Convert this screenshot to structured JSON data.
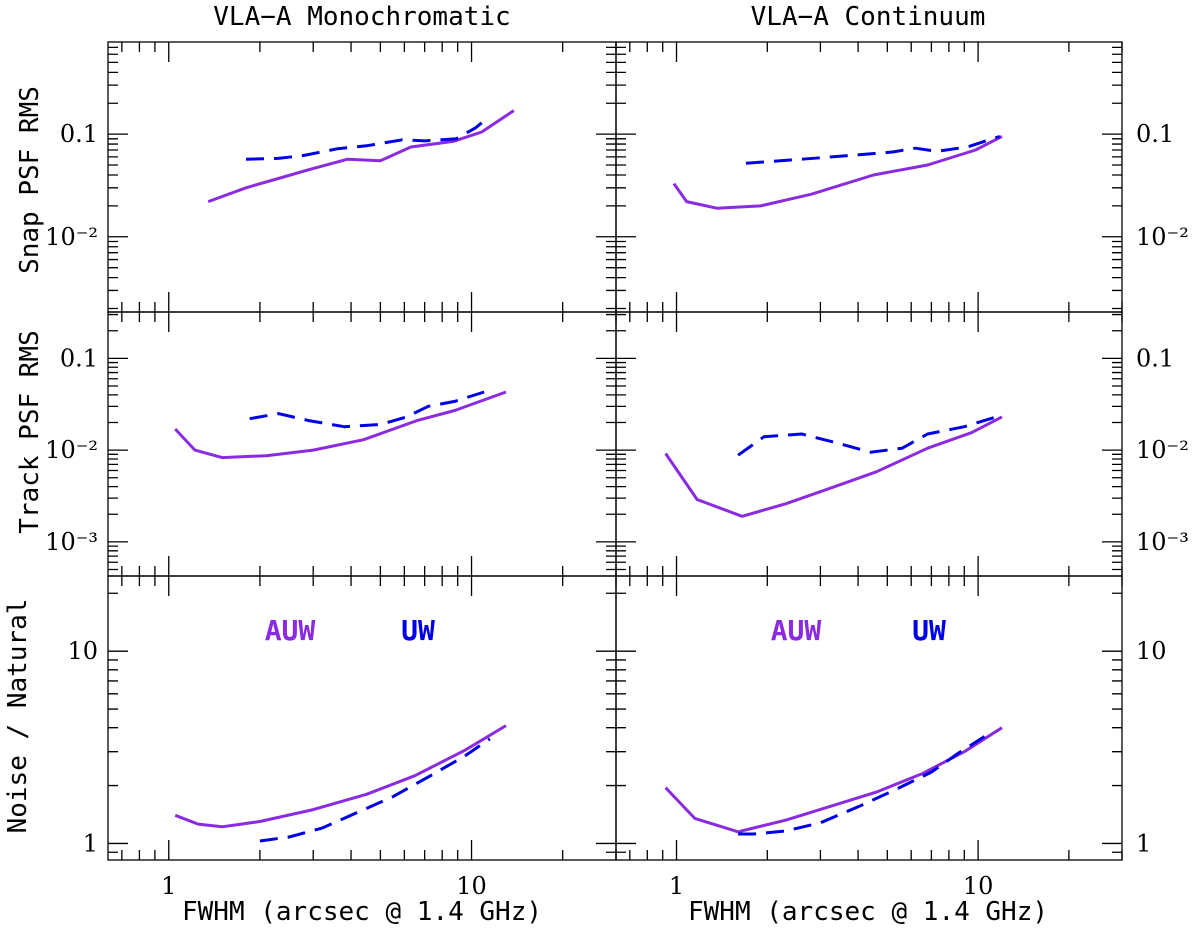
{
  "colors": {
    "auw": "#8a2be2",
    "uw": "#0000e6"
  },
  "columns": [
    {
      "title": "VLA−A Monochromatic",
      "xlabel": "FWHM (arcsec @ 1.4 GHz)"
    },
    {
      "title": "VLA−A Continuum",
      "xlabel": "FWHM (arcsec @ 1.4 GHz)"
    }
  ],
  "rows": [
    {
      "ylabel": "Snap PSF RMS"
    },
    {
      "ylabel": "Track PSF RMS"
    },
    {
      "ylabel": "Noise / Natural"
    }
  ],
  "legend": {
    "auw": "AUW",
    "uw": "UW"
  },
  "chart_data": [
    {
      "type": "line",
      "title": "VLA−A Monochromatic",
      "xlabel": "",
      "ylabel": "Snap PSF RMS",
      "xscale": "log",
      "yscale": "log",
      "xlim": [
        0.63,
        30
      ],
      "ylim": [
        0.00185,
        0.79
      ],
      "xticklabels": [],
      "yticklabels": [
        {
          "v": 0.01,
          "t": "10⁻²"
        },
        {
          "v": 0.1,
          "t": "0.1"
        }
      ],
      "series": [
        {
          "name": "AUW",
          "style": "solid",
          "x": [
            1.35,
            1.8,
            2.3,
            2.9,
            3.9,
            5.0,
            6.3,
            8.7,
            10.8,
            13.8
          ],
          "y": [
            0.022,
            0.03,
            0.037,
            0.045,
            0.057,
            0.055,
            0.075,
            0.085,
            0.105,
            0.17
          ]
        },
        {
          "name": "UW",
          "style": "dashed",
          "x": [
            1.8,
            2.3,
            2.8,
            3.6,
            4.5,
            5.9,
            7.0,
            8.9,
            10.3,
            11.2
          ],
          "y": [
            0.057,
            0.058,
            0.062,
            0.072,
            0.077,
            0.088,
            0.086,
            0.09,
            0.115,
            0.14
          ]
        }
      ]
    },
    {
      "type": "line",
      "title": "VLA−A Continuum",
      "xlabel": "",
      "ylabel": "",
      "xscale": "log",
      "yscale": "log",
      "xlim": [
        0.63,
        30
      ],
      "ylim": [
        0.00185,
        0.79
      ],
      "xticklabels": [],
      "yticklabels": [
        {
          "v": 0.01,
          "t": "10⁻²"
        },
        {
          "v": 0.1,
          "t": "0.1"
        }
      ],
      "series": [
        {
          "name": "AUW",
          "style": "solid",
          "x": [
            0.98,
            1.08,
            1.36,
            1.9,
            2.8,
            4.5,
            6.8,
            9.8,
            12.0
          ],
          "y": [
            0.033,
            0.022,
            0.019,
            0.02,
            0.026,
            0.04,
            0.05,
            0.07,
            0.095
          ]
        },
        {
          "name": "UW",
          "style": "dashed",
          "x": [
            1.7,
            2.6,
            3.8,
            5.2,
            6.2,
            7.3,
            9.2,
            11.8
          ],
          "y": [
            0.052,
            0.057,
            0.062,
            0.067,
            0.073,
            0.068,
            0.075,
            0.095
          ]
        }
      ]
    },
    {
      "type": "line",
      "title": "",
      "xlabel": "",
      "ylabel": "Track PSF RMS",
      "xscale": "log",
      "yscale": "log",
      "xlim": [
        0.63,
        30
      ],
      "ylim": [
        0.000425,
        0.32
      ],
      "xticklabels": [],
      "yticklabels": [
        {
          "v": 0.001,
          "t": "10⁻³"
        },
        {
          "v": 0.01,
          "t": "10⁻²"
        },
        {
          "v": 0.1,
          "t": "0.1"
        }
      ],
      "series": [
        {
          "name": "AUW",
          "style": "solid",
          "x": [
            1.05,
            1.22,
            1.5,
            2.1,
            3.0,
            4.4,
            6.6,
            8.8,
            13.0
          ],
          "y": [
            0.017,
            0.01,
            0.0083,
            0.0087,
            0.01,
            0.013,
            0.021,
            0.027,
            0.043
          ]
        },
        {
          "name": "UW",
          "style": "dashed",
          "x": [
            1.85,
            2.3,
            2.9,
            3.8,
            5.0,
            6.1,
            7.2,
            8.8,
            11.0
          ],
          "y": [
            0.022,
            0.025,
            0.021,
            0.018,
            0.019,
            0.023,
            0.03,
            0.034,
            0.043
          ]
        }
      ]
    },
    {
      "type": "line",
      "title": "",
      "xlabel": "",
      "ylabel": "",
      "xscale": "log",
      "yscale": "log",
      "xlim": [
        0.63,
        30
      ],
      "ylim": [
        0.000425,
        0.32
      ],
      "xticklabels": [],
      "yticklabels": [
        {
          "v": 0.001,
          "t": "10⁻³"
        },
        {
          "v": 0.01,
          "t": "10⁻²"
        },
        {
          "v": 0.1,
          "t": "0.1"
        }
      ],
      "series": [
        {
          "name": "AUW",
          "style": "solid",
          "x": [
            0.92,
            1.17,
            1.65,
            2.3,
            3.2,
            4.6,
            6.8,
            9.5,
            12.0
          ],
          "y": [
            0.0092,
            0.0029,
            0.0019,
            0.0026,
            0.0038,
            0.0058,
            0.0105,
            0.0155,
            0.023
          ]
        },
        {
          "name": "UW",
          "style": "dashed",
          "x": [
            1.6,
            1.95,
            2.6,
            3.4,
            4.4,
            5.6,
            6.8,
            9.0,
            12.0
          ],
          "y": [
            0.0088,
            0.014,
            0.015,
            0.012,
            0.0095,
            0.0105,
            0.015,
            0.018,
            0.024
          ]
        }
      ]
    },
    {
      "type": "line",
      "title": "",
      "xlabel": "FWHM (arcsec @ 1.4 GHz)",
      "ylabel": "Noise / Natural",
      "xscale": "log",
      "yscale": "log",
      "xlim": [
        0.63,
        30
      ],
      "ylim": [
        0.82,
        24.6
      ],
      "xticklabels": [
        {
          "v": 1,
          "t": "1"
        },
        {
          "v": 10,
          "t": "10"
        }
      ],
      "yticklabels": [
        {
          "v": 1,
          "t": "1"
        },
        {
          "v": 10,
          "t": "10"
        }
      ],
      "series": [
        {
          "name": "AUW",
          "style": "solid",
          "x": [
            1.05,
            1.25,
            1.5,
            2.0,
            3.0,
            4.5,
            6.5,
            9.5,
            13.0
          ],
          "y": [
            1.4,
            1.26,
            1.22,
            1.3,
            1.5,
            1.8,
            2.25,
            3.05,
            4.1
          ]
        },
        {
          "name": "UW",
          "style": "dashed",
          "x": [
            2.0,
            2.5,
            3.2,
            4.2,
            5.5,
            7.5,
            9.5,
            11.5
          ],
          "y": [
            1.03,
            1.08,
            1.2,
            1.45,
            1.75,
            2.3,
            2.85,
            3.5
          ]
        }
      ]
    },
    {
      "type": "line",
      "title": "",
      "xlabel": "FWHM (arcsec @ 1.4 GHz)",
      "ylabel": "",
      "xscale": "log",
      "yscale": "log",
      "xlim": [
        0.63,
        30
      ],
      "ylim": [
        0.82,
        24.6
      ],
      "xticklabels": [
        {
          "v": 1,
          "t": "1"
        },
        {
          "v": 10,
          "t": "10"
        }
      ],
      "yticklabels": [
        {
          "v": 1,
          "t": "1"
        },
        {
          "v": 10,
          "t": "10"
        }
      ],
      "series": [
        {
          "name": "AUW",
          "style": "solid",
          "x": [
            0.92,
            1.15,
            1.6,
            2.3,
            3.2,
            4.6,
            6.5,
            9.0,
            12.0
          ],
          "y": [
            1.95,
            1.35,
            1.15,
            1.32,
            1.55,
            1.85,
            2.3,
            3.0,
            4.0
          ]
        },
        {
          "name": "UW",
          "style": "dashed",
          "x": [
            1.6,
            1.8,
            2.3,
            3.0,
            4.0,
            5.3,
            7.0,
            8.6,
            10.5
          ],
          "y": [
            1.12,
            1.12,
            1.16,
            1.28,
            1.55,
            1.9,
            2.35,
            2.95,
            3.6
          ]
        }
      ]
    }
  ]
}
